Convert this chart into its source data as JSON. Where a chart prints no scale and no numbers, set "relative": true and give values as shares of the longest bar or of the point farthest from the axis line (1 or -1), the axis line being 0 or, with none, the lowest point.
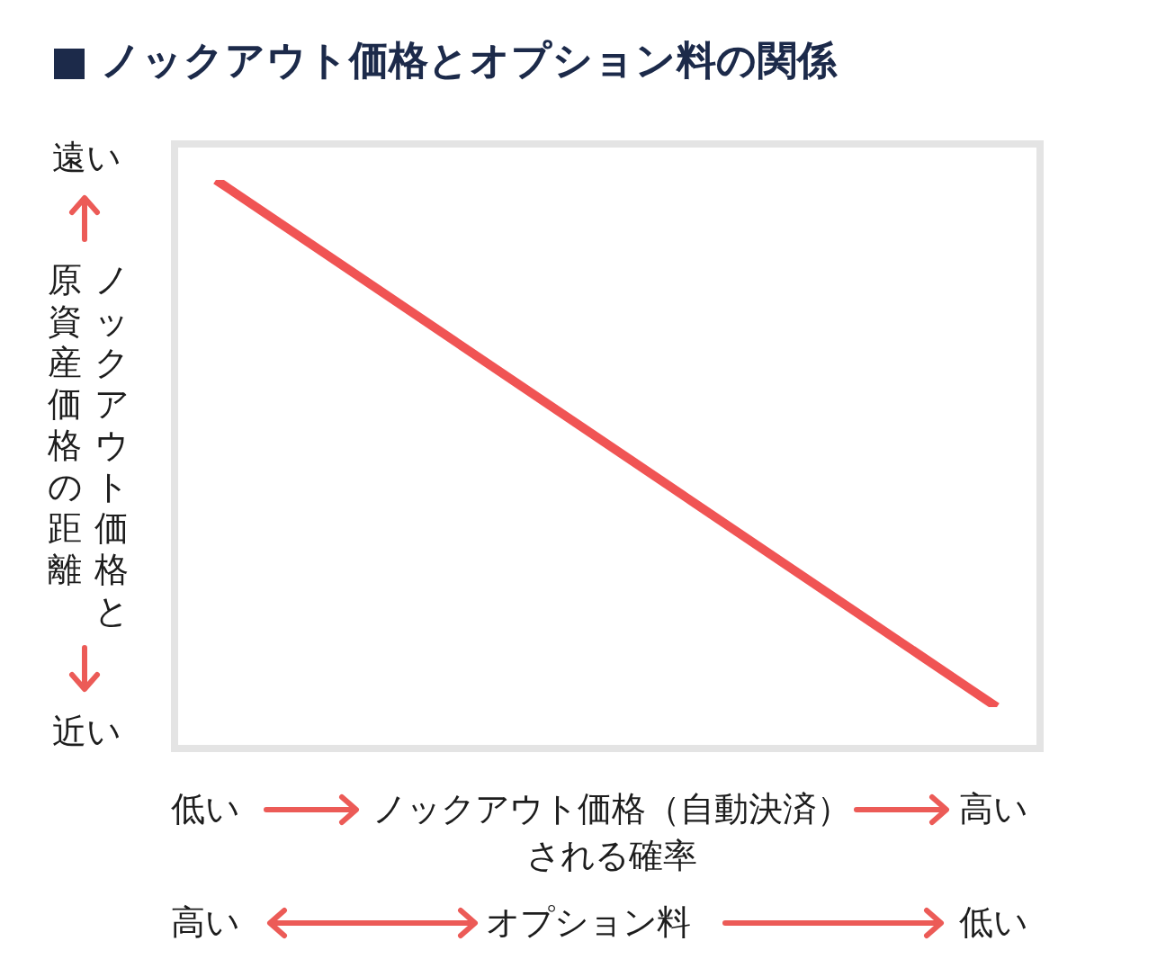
{
  "chart_data": {
    "type": "line",
    "title": "ノックアウト価格とオプション料の関係",
    "relative": true,
    "categories": [
      null,
      null
    ],
    "series": [
      {
        "color": "#f05454",
        "values": [
          1,
          0
        ]
      }
    ],
    "xlabel": "ノックアウト価格（自動決済）される確率",
    "ylabel": "ノックアウト価格と原資産価格の距離",
    "annotations": [
      "遠い",
      "近い",
      "低い",
      "高い",
      "高い",
      "オプション料",
      "低い"
    ]
  }
}
